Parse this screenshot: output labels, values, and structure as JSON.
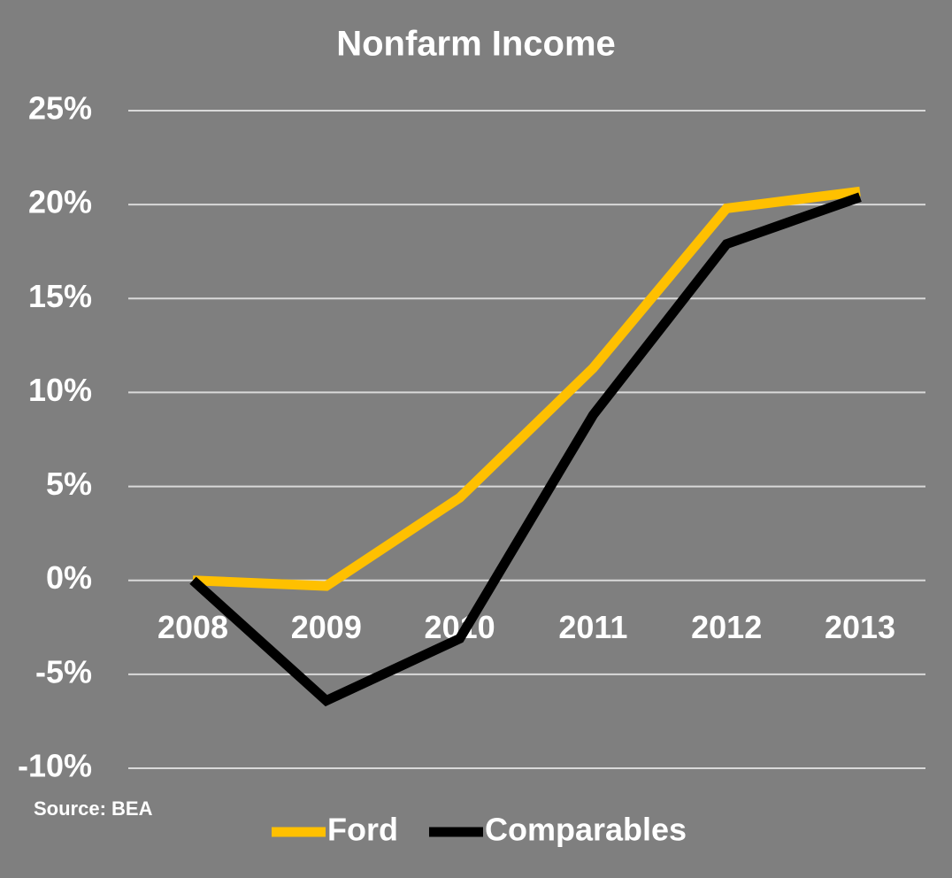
{
  "chart_data": {
    "type": "line",
    "title": "Nonfarm Income",
    "categories": [
      "2008",
      "2009",
      "2010",
      "2011",
      "2012",
      "2013"
    ],
    "series": [
      {
        "name": "Ford",
        "color": "#ffc000",
        "values": [
          0,
          -0.3,
          4.4,
          11.3,
          19.8,
          20.7
        ]
      },
      {
        "name": "Comparables",
        "color": "#000000",
        "values": [
          0,
          -6.4,
          -3.1,
          8.8,
          17.9,
          20.4
        ]
      }
    ],
    "ylim": [
      -10,
      25
    ],
    "yticks": [
      {
        "value": -10,
        "label": "-10%"
      },
      {
        "value": -5,
        "label": "-5%"
      },
      {
        "value": 0,
        "label": "0%"
      },
      {
        "value": 5,
        "label": "5%"
      },
      {
        "value": 10,
        "label": "10%"
      },
      {
        "value": 15,
        "label": "15%"
      },
      {
        "value": 20,
        "label": "20%"
      },
      {
        "value": 25,
        "label": "25%"
      }
    ],
    "grid": true,
    "legend": "bottom",
    "source": "Source: BEA"
  }
}
